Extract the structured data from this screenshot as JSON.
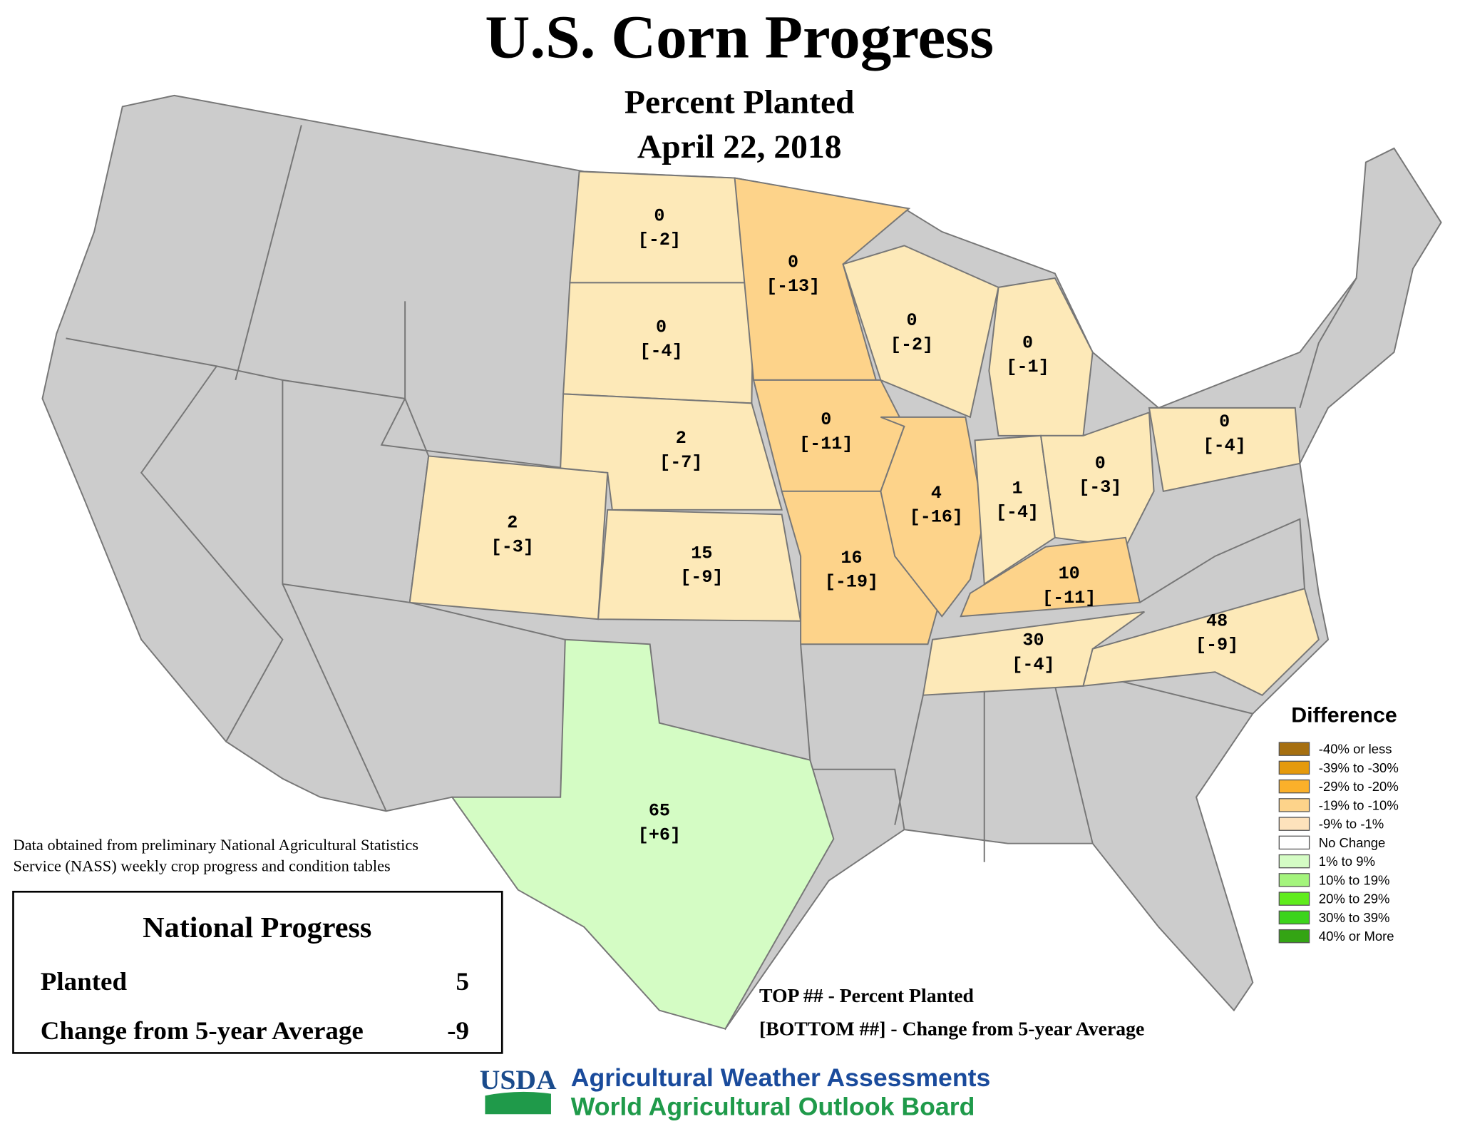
{
  "header": {
    "title": "U.S. Corn Progress",
    "subtitle": "Percent Planted",
    "date": "April 22, 2018"
  },
  "states": [
    {
      "planted": "0",
      "change": "[-2]",
      "color": "#fde9b8"
    },
    {
      "planted": "0",
      "change": "[-4]",
      "color": "#fde9b8"
    },
    {
      "planted": "2",
      "change": "[-7]",
      "color": "#fde9b8"
    },
    {
      "planted": "15",
      "change": "[-9]",
      "color": "#fde9b8"
    },
    {
      "planted": "2",
      "change": "[-3]",
      "color": "#fde9b8"
    },
    {
      "planted": "0",
      "change": "[-13]",
      "color": "#fdd38a"
    },
    {
      "planted": "0",
      "change": "[-11]",
      "color": "#fdd38a"
    },
    {
      "planted": "16",
      "change": "[-19]",
      "color": "#fdd38a"
    },
    {
      "planted": "4",
      "change": "[-16]",
      "color": "#fdd38a"
    },
    {
      "planted": "0",
      "change": "[-2]",
      "color": "#fde9b8"
    },
    {
      "planted": "0",
      "change": "[-1]",
      "color": "#fde9b8"
    },
    {
      "planted": "1",
      "change": "[-4]",
      "color": "#fde9b8"
    },
    {
      "planted": "0",
      "change": "[-3]",
      "color": "#fde9b8"
    },
    {
      "planted": "0",
      "change": "[-4]",
      "color": "#fde9b8"
    },
    {
      "planted": "10",
      "change": "[-11]",
      "color": "#fdd38a"
    },
    {
      "planted": "30",
      "change": "[-4]",
      "color": "#fde9b8"
    },
    {
      "planted": "48",
      "change": "[-9]",
      "color": "#fde9b8"
    },
    {
      "planted": "65",
      "change": "[+6]",
      "color": "#d4fcc4"
    }
  ],
  "legend": {
    "title": "Difference",
    "items": [
      {
        "label": "-40% or less",
        "color": "#a66f10"
      },
      {
        "label": "-39% to -30%",
        "color": "#e59a0c"
      },
      {
        "label": "-29% to -20%",
        "color": "#fbb02a"
      },
      {
        "label": "-19% to -10%",
        "color": "#fdd38a"
      },
      {
        "label": "-9% to -1%",
        "color": "#fde2bc"
      },
      {
        "label": "No Change",
        "color": "#ffffff"
      },
      {
        "label": "1% to 9%",
        "color": "#d4fcc4"
      },
      {
        "label": "10% to 19%",
        "color": "#a4f47c"
      },
      {
        "label": "20% to 29%",
        "color": "#60ec1c"
      },
      {
        "label": "30% to 39%",
        "color": "#3cd41c"
      },
      {
        "label": "40% or More",
        "color": "#34a414"
      }
    ]
  },
  "source_note": [
    "Data obtained from preliminary National Agricultural Statistics",
    "Service (NASS) weekly crop progress and condition tables"
  ],
  "national": {
    "title": "National Progress",
    "rows": [
      {
        "label": "Planted",
        "value": "5"
      },
      {
        "label": "Change from 5-year Average",
        "value": "-9"
      }
    ]
  },
  "key": [
    "TOP ## - Percent Planted",
    "[BOTTOM ##] - Change from 5-year Average"
  ],
  "footer": {
    "logo": "USDA",
    "line1": "Agricultural Weather Assessments",
    "line2": "World Agricultural Outlook Board"
  }
}
